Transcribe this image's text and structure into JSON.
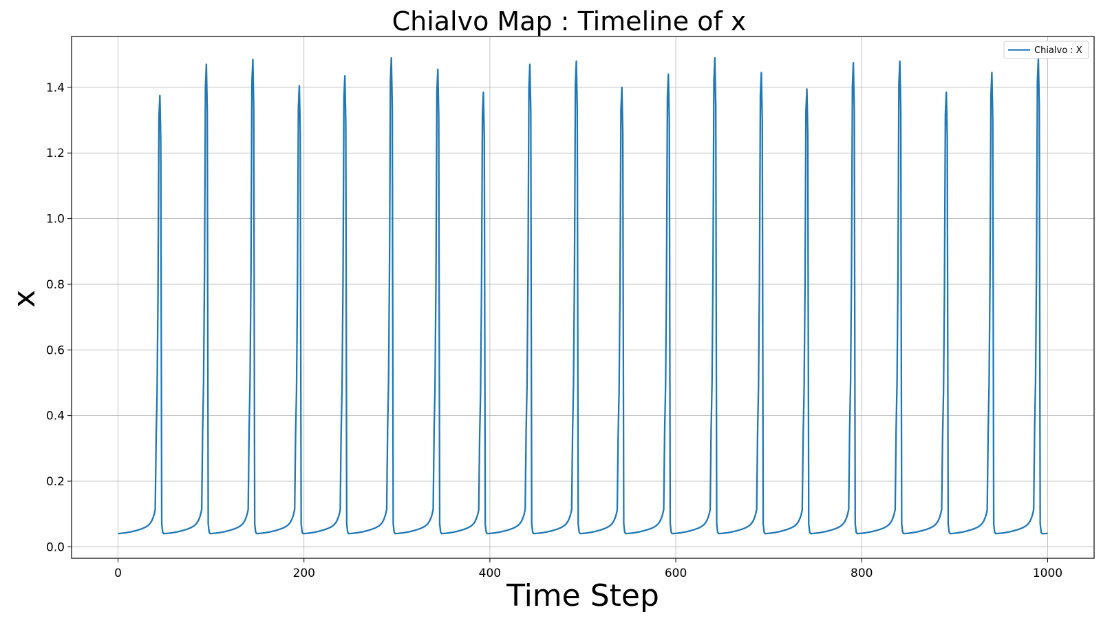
{
  "chart_data": {
    "type": "line",
    "title": "Chialvo Map : Timeline of x",
    "xlabel": "Time Step",
    "ylabel": "x",
    "xlim": [
      -50,
      1050
    ],
    "ylim": [
      -0.035,
      1.555
    ],
    "x_ticks": [
      0,
      200,
      400,
      600,
      800,
      1000
    ],
    "y_ticks": [
      0.0,
      0.2,
      0.4,
      0.6,
      0.8,
      1.0,
      1.2,
      1.4
    ],
    "grid": true,
    "legend_position": "top-right",
    "series": [
      {
        "name": "Chialvo : X",
        "color": "#1f77b4",
        "x_start": 0,
        "x_end": 1000,
        "baseline": 0.04,
        "spikes": [
          {
            "t": 45,
            "peak": 1.375
          },
          {
            "t": 95,
            "peak": 1.47
          },
          {
            "t": 145,
            "peak": 1.485
          },
          {
            "t": 195,
            "peak": 1.405
          },
          {
            "t": 244,
            "peak": 1.435
          },
          {
            "t": 294,
            "peak": 1.49
          },
          {
            "t": 344,
            "peak": 1.455
          },
          {
            "t": 393,
            "peak": 1.385
          },
          {
            "t": 443,
            "peak": 1.47
          },
          {
            "t": 493,
            "peak": 1.48
          },
          {
            "t": 542,
            "peak": 1.4
          },
          {
            "t": 592,
            "peak": 1.44
          },
          {
            "t": 642,
            "peak": 1.49
          },
          {
            "t": 692,
            "peak": 1.445
          },
          {
            "t": 741,
            "peak": 1.395
          },
          {
            "t": 791,
            "peak": 1.475
          },
          {
            "t": 841,
            "peak": 1.48
          },
          {
            "t": 891,
            "peak": 1.385
          },
          {
            "t": 940,
            "peak": 1.445
          },
          {
            "t": 990,
            "peak": 1.49
          }
        ]
      }
    ]
  }
}
